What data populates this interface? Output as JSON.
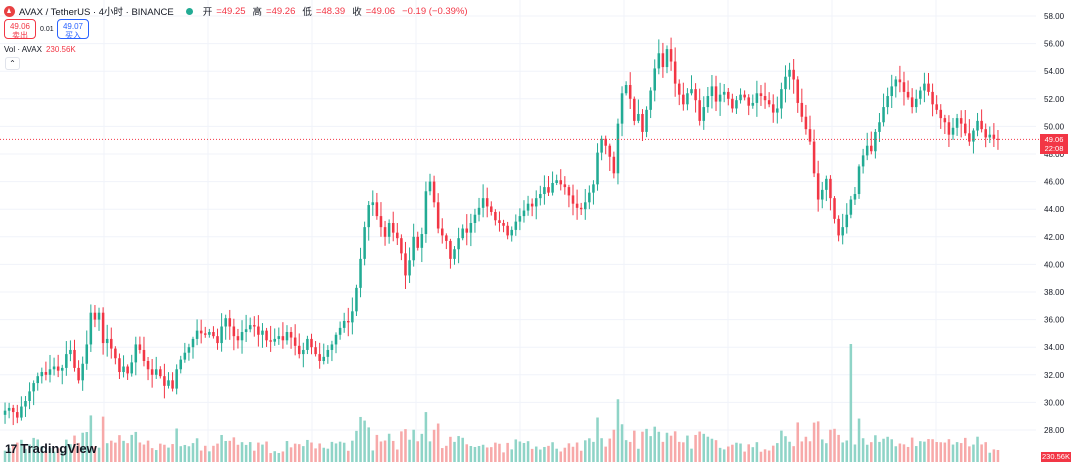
{
  "header": {
    "symbol": "AVAX / TetherUS · 4小时 · BINANCE",
    "open_label": "开",
    "open": "=49.25",
    "high_label": "高",
    "high": "=49.26",
    "low_label": "低",
    "low": "=48.39",
    "close_label": "收",
    "close": "=49.06",
    "change": "−0.19 (−0.39%)"
  },
  "trade": {
    "sell_price": "49.06",
    "sell_label": "卖出",
    "spread": "0.01",
    "buy_price": "49.07",
    "buy_label": "买入"
  },
  "volume_legend": {
    "label": "Vol · AVAX",
    "value": "230.56K"
  },
  "price_tag": {
    "price": "49.06",
    "countdown": "22:08"
  },
  "volume_tag": "230.56K",
  "logo_text": "TradingView",
  "colors": {
    "up": "#22ab94",
    "down": "#f23645",
    "up_vol": "#8fd4c7",
    "down_vol": "#f7a9a9",
    "grid": "#f0f3fa",
    "axis_text": "#131722"
  },
  "chart_data": {
    "type": "candlestick",
    "yaxis": {
      "ticks": [
        "58.00",
        "56.00",
        "54.00",
        "52.00",
        "50.00",
        "48.00",
        "46.00",
        "44.00",
        "42.00",
        "40.00",
        "38.00",
        "36.00",
        "34.00",
        "32.00",
        "30.00",
        "28.00"
      ],
      "min": 26.6,
      "max": 58.8,
      "position": "right"
    },
    "last_price": 49.06,
    "grid": true,
    "closes": [
      29.4,
      29.6,
      29.3,
      28.9,
      29.7,
      30.1,
      30.8,
      31.4,
      31.9,
      32.2,
      32.0,
      32.4,
      32.6,
      32.3,
      32.5,
      33.5,
      33.8,
      32.5,
      31.6,
      32.8,
      34.2,
      36.5,
      36.0,
      36.5,
      34.3,
      34.6,
      33.9,
      33.2,
      32.2,
      32.6,
      32.1,
      32.9,
      34.2,
      33.8,
      33.0,
      32.4,
      32.0,
      32.4,
      31.9,
      31.2,
      31.6,
      31.0,
      32.4,
      33.1,
      33.6,
      34.0,
      34.6,
      35.2,
      35.0,
      34.9,
      35.1,
      34.8,
      34.3,
      35.5,
      36.1,
      35.5,
      34.8,
      34.5,
      35.1,
      35.3,
      35.6,
      35.5,
      34.9,
      35.2,
      34.5,
      34.4,
      34.6,
      34.8,
      34.5,
      35.1,
      34.7,
      34.1,
      33.5,
      33.8,
      34.6,
      34.0,
      33.5,
      33.0,
      33.3,
      33.8,
      34.2,
      34.9,
      35.4,
      35.9,
      35.8,
      36.6,
      38.3,
      40.4,
      42.7,
      44.3,
      44.5,
      43.5,
      42.7,
      42.0,
      43.0,
      42.3,
      41.9,
      40.8,
      39.2,
      40.3,
      42.0,
      41.2,
      42.2,
      45.3,
      46.0,
      44.5,
      42.6,
      42.1,
      41.7,
      40.4,
      41.1,
      41.9,
      42.6,
      42.3,
      43.0,
      43.6,
      44.1,
      44.8,
      44.2,
      43.8,
      43.2,
      43.0,
      42.8,
      42.1,
      42.5,
      43.1,
      43.5,
      43.9,
      44.4,
      44.2,
      44.8,
      45.1,
      45.6,
      45.2,
      45.9,
      46.1,
      45.8,
      45.6,
      45.0,
      44.4,
      44.1,
      44.0,
      44.5,
      45.2,
      45.8,
      48.1,
      49.1,
      48.6,
      47.8,
      46.6,
      50.2,
      52.4,
      53.0,
      52.0,
      50.4,
      50.9,
      49.6,
      51.2,
      52.6,
      54.2,
      55.3,
      54.3,
      55.6,
      54.7,
      53.1,
      52.3,
      51.6,
      52.4,
      52.7,
      51.9,
      50.4,
      51.4,
      52.2,
      52.9,
      51.8,
      52.3,
      52.5,
      52.0,
      51.3,
      51.9,
      52.3,
      52.1,
      51.5,
      51.7,
      52.4,
      52.2,
      51.9,
      51.6,
      51.0,
      51.3,
      52.7,
      53.6,
      54.1,
      53.4,
      51.7,
      50.7,
      49.8,
      48.9,
      46.6,
      44.7,
      45.4,
      46.2,
      44.8,
      43.3,
      42.1,
      42.7,
      43.6,
      44.7,
      45.1,
      47.1,
      47.9,
      48.6,
      48.2,
      49.6,
      50.3,
      51.4,
      52.2,
      52.9,
      53.4,
      53.2,
      52.5,
      52.1,
      51.4,
      52.0,
      52.6,
      53.1,
      52.5,
      51.6,
      51.2,
      50.6,
      50.3,
      49.4,
      49.9,
      50.6,
      50.2,
      49.5,
      48.9,
      49.7,
      50.4,
      49.8,
      49.2,
      49.4,
      49.1,
      49.06
    ],
    "volume": {
      "label": "Vol · AVAX",
      "last": "230.56K",
      "peak_index": 207,
      "visible": true
    }
  }
}
